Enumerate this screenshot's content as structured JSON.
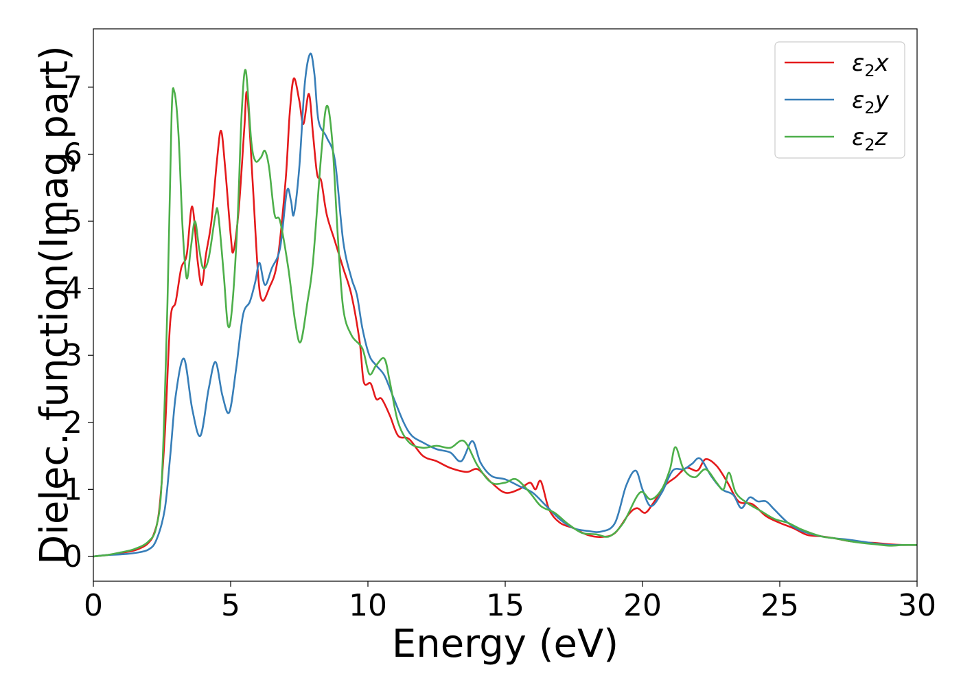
{
  "chart_data": {
    "type": "line",
    "xlabel": "Energy (eV)",
    "ylabel": "Dielec. function(Imag part)",
    "xlim": [
      0,
      30
    ],
    "ylim": [
      -0.37,
      7.87
    ],
    "xticks": [
      0,
      5,
      10,
      15,
      20,
      25,
      30
    ],
    "yticks": [
      0,
      1,
      2,
      3,
      4,
      5,
      6,
      7
    ],
    "grid": false,
    "legend_position": "top-right",
    "series": [
      {
        "name": "ε2x",
        "legend": {
          "symbol": "ε",
          "sub": "2",
          "axis": "x"
        },
        "color": "#e41a1c",
        "points": [
          [
            0,
            0
          ],
          [
            0.5,
            0.02
          ],
          [
            1,
            0.05
          ],
          [
            1.5,
            0.09
          ],
          [
            1.8,
            0.14
          ],
          [
            2.0,
            0.2
          ],
          [
            2.2,
            0.33
          ],
          [
            2.4,
            0.7
          ],
          [
            2.6,
            1.8
          ],
          [
            2.8,
            3.5
          ],
          [
            3.0,
            3.8
          ],
          [
            3.2,
            4.3
          ],
          [
            3.4,
            4.5
          ],
          [
            3.6,
            5.22
          ],
          [
            3.8,
            4.4
          ],
          [
            3.95,
            4.05
          ],
          [
            4.1,
            4.5
          ],
          [
            4.3,
            5.0
          ],
          [
            4.5,
            5.9
          ],
          [
            4.65,
            6.35
          ],
          [
            4.8,
            5.8
          ],
          [
            5.0,
            4.8
          ],
          [
            5.1,
            4.55
          ],
          [
            5.3,
            5.2
          ],
          [
            5.5,
            6.4
          ],
          [
            5.6,
            6.9
          ],
          [
            5.8,
            5.6
          ],
          [
            6.0,
            4.2
          ],
          [
            6.15,
            3.82
          ],
          [
            6.4,
            4.0
          ],
          [
            6.7,
            4.4
          ],
          [
            7.0,
            5.6
          ],
          [
            7.15,
            6.6
          ],
          [
            7.3,
            7.13
          ],
          [
            7.5,
            6.8
          ],
          [
            7.65,
            6.45
          ],
          [
            7.85,
            6.9
          ],
          [
            8.0,
            6.3
          ],
          [
            8.15,
            5.7
          ],
          [
            8.3,
            5.6
          ],
          [
            8.5,
            5.1
          ],
          [
            8.8,
            4.7
          ],
          [
            9.1,
            4.3
          ],
          [
            9.4,
            3.9
          ],
          [
            9.7,
            3.2
          ],
          [
            9.85,
            2.6
          ],
          [
            10.1,
            2.58
          ],
          [
            10.3,
            2.35
          ],
          [
            10.5,
            2.35
          ],
          [
            10.8,
            2.1
          ],
          [
            11.1,
            1.8
          ],
          [
            11.5,
            1.75
          ],
          [
            12.0,
            1.5
          ],
          [
            12.5,
            1.42
          ],
          [
            13.0,
            1.32
          ],
          [
            13.6,
            1.26
          ],
          [
            14.0,
            1.3
          ],
          [
            14.5,
            1.1
          ],
          [
            15.0,
            0.95
          ],
          [
            15.5,
            1.0
          ],
          [
            15.9,
            1.1
          ],
          [
            16.1,
            1.0
          ],
          [
            16.3,
            1.12
          ],
          [
            16.6,
            0.7
          ],
          [
            17.0,
            0.5
          ],
          [
            17.5,
            0.42
          ],
          [
            18.0,
            0.32
          ],
          [
            18.5,
            0.29
          ],
          [
            19.0,
            0.35
          ],
          [
            19.5,
            0.63
          ],
          [
            19.8,
            0.72
          ],
          [
            20.1,
            0.65
          ],
          [
            20.4,
            0.8
          ],
          [
            20.8,
            1.05
          ],
          [
            21.2,
            1.18
          ],
          [
            21.6,
            1.32
          ],
          [
            22.0,
            1.28
          ],
          [
            22.3,
            1.45
          ],
          [
            22.7,
            1.35
          ],
          [
            23.1,
            1.1
          ],
          [
            23.5,
            0.82
          ],
          [
            24.0,
            0.78
          ],
          [
            24.5,
            0.6
          ],
          [
            25.0,
            0.5
          ],
          [
            25.5,
            0.42
          ],
          [
            26.0,
            0.32
          ],
          [
            26.5,
            0.3
          ],
          [
            27.0,
            0.27
          ],
          [
            27.5,
            0.23
          ],
          [
            28.0,
            0.21
          ],
          [
            28.5,
            0.2
          ],
          [
            29.0,
            0.18
          ],
          [
            29.5,
            0.17
          ],
          [
            30.0,
            0.17
          ]
        ]
      },
      {
        "name": "ε2y",
        "legend": {
          "symbol": "ε",
          "sub": "2",
          "axis": "y"
        },
        "color": "#377eb8",
        "points": [
          [
            0,
            0
          ],
          [
            0.5,
            0.02
          ],
          [
            1,
            0.03
          ],
          [
            1.5,
            0.05
          ],
          [
            2.0,
            0.1
          ],
          [
            2.3,
            0.25
          ],
          [
            2.6,
            0.7
          ],
          [
            2.8,
            1.5
          ],
          [
            3.0,
            2.4
          ],
          [
            3.3,
            2.95
          ],
          [
            3.6,
            2.2
          ],
          [
            3.9,
            1.8
          ],
          [
            4.2,
            2.5
          ],
          [
            4.45,
            2.9
          ],
          [
            4.7,
            2.4
          ],
          [
            4.95,
            2.15
          ],
          [
            5.2,
            2.8
          ],
          [
            5.45,
            3.6
          ],
          [
            5.7,
            3.8
          ],
          [
            5.9,
            4.1
          ],
          [
            6.05,
            4.38
          ],
          [
            6.25,
            4.05
          ],
          [
            6.5,
            4.3
          ],
          [
            6.8,
            4.6
          ],
          [
            7.05,
            5.45
          ],
          [
            7.2,
            5.3
          ],
          [
            7.3,
            5.1
          ],
          [
            7.5,
            5.8
          ],
          [
            7.7,
            7.05
          ],
          [
            7.9,
            7.5
          ],
          [
            8.05,
            7.2
          ],
          [
            8.2,
            6.5
          ],
          [
            8.5,
            6.25
          ],
          [
            8.8,
            5.9
          ],
          [
            9.1,
            4.7
          ],
          [
            9.4,
            4.15
          ],
          [
            9.6,
            3.9
          ],
          [
            9.8,
            3.4
          ],
          [
            10.05,
            3.0
          ],
          [
            10.3,
            2.85
          ],
          [
            10.6,
            2.7
          ],
          [
            10.9,
            2.4
          ],
          [
            11.3,
            2.0
          ],
          [
            11.6,
            1.8
          ],
          [
            12.0,
            1.7
          ],
          [
            12.5,
            1.6
          ],
          [
            13.0,
            1.55
          ],
          [
            13.4,
            1.42
          ],
          [
            13.8,
            1.72
          ],
          [
            14.1,
            1.4
          ],
          [
            14.5,
            1.2
          ],
          [
            15.0,
            1.15
          ],
          [
            15.5,
            1.05
          ],
          [
            16.0,
            0.95
          ],
          [
            16.5,
            0.75
          ],
          [
            17.0,
            0.55
          ],
          [
            17.5,
            0.42
          ],
          [
            18.0,
            0.38
          ],
          [
            18.5,
            0.37
          ],
          [
            19.0,
            0.5
          ],
          [
            19.4,
            1.05
          ],
          [
            19.75,
            1.28
          ],
          [
            20.0,
            1.0
          ],
          [
            20.3,
            0.75
          ],
          [
            20.7,
            0.95
          ],
          [
            21.1,
            1.28
          ],
          [
            21.5,
            1.3
          ],
          [
            21.8,
            1.38
          ],
          [
            22.1,
            1.46
          ],
          [
            22.5,
            1.2
          ],
          [
            22.9,
            1.0
          ],
          [
            23.3,
            0.92
          ],
          [
            23.6,
            0.72
          ],
          [
            23.9,
            0.88
          ],
          [
            24.2,
            0.82
          ],
          [
            24.5,
            0.82
          ],
          [
            24.8,
            0.7
          ],
          [
            25.3,
            0.5
          ],
          [
            25.8,
            0.38
          ],
          [
            26.5,
            0.3
          ],
          [
            27.0,
            0.27
          ],
          [
            27.5,
            0.25
          ],
          [
            28.0,
            0.22
          ],
          [
            28.5,
            0.19
          ],
          [
            29.0,
            0.17
          ],
          [
            29.5,
            0.17
          ],
          [
            30.0,
            0.17
          ]
        ]
      },
      {
        "name": "ε2z",
        "legend": {
          "symbol": "ε",
          "sub": "2",
          "axis": "z"
        },
        "color": "#4daf4a",
        "points": [
          [
            0,
            0
          ],
          [
            0.5,
            0.02
          ],
          [
            1,
            0.06
          ],
          [
            1.5,
            0.11
          ],
          [
            2.0,
            0.22
          ],
          [
            2.3,
            0.45
          ],
          [
            2.5,
            1.2
          ],
          [
            2.7,
            3.8
          ],
          [
            2.85,
            6.6
          ],
          [
            2.95,
            6.93
          ],
          [
            3.1,
            6.3
          ],
          [
            3.25,
            4.9
          ],
          [
            3.4,
            4.15
          ],
          [
            3.55,
            4.6
          ],
          [
            3.7,
            5.0
          ],
          [
            3.85,
            4.6
          ],
          [
            4.0,
            4.3
          ],
          [
            4.2,
            4.45
          ],
          [
            4.45,
            5.1
          ],
          [
            4.55,
            5.1
          ],
          [
            4.75,
            4.2
          ],
          [
            4.9,
            3.45
          ],
          [
            5.05,
            3.7
          ],
          [
            5.25,
            5.0
          ],
          [
            5.4,
            6.6
          ],
          [
            5.55,
            7.25
          ],
          [
            5.75,
            6.2
          ],
          [
            5.9,
            5.9
          ],
          [
            6.1,
            5.95
          ],
          [
            6.25,
            6.05
          ],
          [
            6.4,
            5.8
          ],
          [
            6.6,
            5.1
          ],
          [
            6.8,
            5.0
          ],
          [
            7.1,
            4.3
          ],
          [
            7.35,
            3.5
          ],
          [
            7.55,
            3.2
          ],
          [
            7.8,
            3.8
          ],
          [
            8.0,
            4.4
          ],
          [
            8.3,
            6.0
          ],
          [
            8.5,
            6.72
          ],
          [
            8.7,
            6.2
          ],
          [
            8.9,
            4.8
          ],
          [
            9.1,
            3.7
          ],
          [
            9.4,
            3.3
          ],
          [
            9.8,
            3.1
          ],
          [
            10.05,
            2.72
          ],
          [
            10.3,
            2.85
          ],
          [
            10.6,
            2.95
          ],
          [
            10.8,
            2.6
          ],
          [
            11.1,
            2.0
          ],
          [
            11.5,
            1.7
          ],
          [
            12.0,
            1.62
          ],
          [
            12.5,
            1.65
          ],
          [
            13.0,
            1.62
          ],
          [
            13.5,
            1.72
          ],
          [
            14.0,
            1.35
          ],
          [
            14.5,
            1.1
          ],
          [
            15.0,
            1.1
          ],
          [
            15.4,
            1.15
          ],
          [
            15.9,
            0.95
          ],
          [
            16.3,
            0.75
          ],
          [
            16.8,
            0.65
          ],
          [
            17.3,
            0.48
          ],
          [
            17.8,
            0.35
          ],
          [
            18.3,
            0.33
          ],
          [
            18.8,
            0.3
          ],
          [
            19.3,
            0.5
          ],
          [
            19.9,
            0.95
          ],
          [
            20.3,
            0.85
          ],
          [
            20.7,
            1.0
          ],
          [
            21.0,
            1.3
          ],
          [
            21.2,
            1.63
          ],
          [
            21.5,
            1.3
          ],
          [
            21.9,
            1.18
          ],
          [
            22.3,
            1.3
          ],
          [
            22.7,
            1.1
          ],
          [
            22.95,
            1.0
          ],
          [
            23.15,
            1.25
          ],
          [
            23.4,
            0.95
          ],
          [
            23.8,
            0.8
          ],
          [
            24.3,
            0.68
          ],
          [
            24.8,
            0.56
          ],
          [
            25.3,
            0.5
          ],
          [
            25.8,
            0.4
          ],
          [
            26.5,
            0.3
          ],
          [
            27.0,
            0.27
          ],
          [
            27.5,
            0.23
          ],
          [
            28.0,
            0.2
          ],
          [
            28.5,
            0.18
          ],
          [
            29.0,
            0.16
          ],
          [
            29.5,
            0.17
          ],
          [
            30.0,
            0.17
          ]
        ]
      }
    ]
  }
}
